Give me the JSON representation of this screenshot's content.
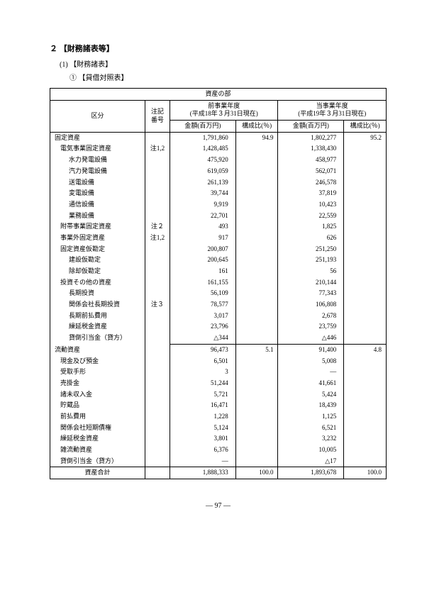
{
  "headings": {
    "h2": "２ 【財務諸表等】",
    "h3": "(1) 【財務諸表】",
    "h4": "① 【貸借対照表】"
  },
  "table": {
    "section_title": "資産の部",
    "col_label": "区分",
    "col_note": "注記番号",
    "period_prev": "前事業年度",
    "period_prev_sub": "(平成18年３月31日現在)",
    "period_curr": "当事業年度",
    "period_curr_sub": "(平成19年３月31日現在)",
    "col_amount": "金額(百万円)",
    "col_ratio": "構成比(％)",
    "total_label": "資産合計",
    "total_prev_amount": "1,888,333",
    "total_prev_ratio": "100.0",
    "total_curr_amount": "1,893,678",
    "total_curr_ratio": "100.0",
    "rows": [
      {
        "label": "固定資産",
        "note": "",
        "prev_amount": "1,791,860",
        "prev_ratio": "94.9",
        "curr_amount": "1,802,277",
        "curr_ratio": "95.2",
        "indent": 0,
        "section": true,
        "top": true
      },
      {
        "label": "電気事業固定資産",
        "note": "注1,2",
        "prev_amount": "1,428,485",
        "prev_ratio": "",
        "curr_amount": "1,338,430",
        "curr_ratio": "",
        "indent": 1
      },
      {
        "label": "水力発電設備",
        "note": "",
        "prev_amount": "475,920",
        "prev_ratio": "",
        "curr_amount": "458,977",
        "curr_ratio": "",
        "indent": 2
      },
      {
        "label": "汽力発電設備",
        "note": "",
        "prev_amount": "619,059",
        "prev_ratio": "",
        "curr_amount": "562,071",
        "curr_ratio": "",
        "indent": 2
      },
      {
        "label": "送電設備",
        "note": "",
        "prev_amount": "261,139",
        "prev_ratio": "",
        "curr_amount": "246,578",
        "curr_ratio": "",
        "indent": 2
      },
      {
        "label": "変電設備",
        "note": "",
        "prev_amount": "39,744",
        "prev_ratio": "",
        "curr_amount": "37,819",
        "curr_ratio": "",
        "indent": 2
      },
      {
        "label": "通信設備",
        "note": "",
        "prev_amount": "9,919",
        "prev_ratio": "",
        "curr_amount": "10,423",
        "curr_ratio": "",
        "indent": 2
      },
      {
        "label": "業務設備",
        "note": "",
        "prev_amount": "22,701",
        "prev_ratio": "",
        "curr_amount": "22,559",
        "curr_ratio": "",
        "indent": 2
      },
      {
        "label": "附帯事業固定資産",
        "note": "注２",
        "prev_amount": "493",
        "prev_ratio": "",
        "curr_amount": "1,825",
        "curr_ratio": "",
        "indent": 1
      },
      {
        "label": "事業外固定資産",
        "note": "注1,2",
        "prev_amount": "917",
        "prev_ratio": "",
        "curr_amount": "626",
        "curr_ratio": "",
        "indent": 1
      },
      {
        "label": "固定資産仮勘定",
        "note": "",
        "prev_amount": "200,807",
        "prev_ratio": "",
        "curr_amount": "251,250",
        "curr_ratio": "",
        "indent": 1
      },
      {
        "label": "建設仮勘定",
        "note": "",
        "prev_amount": "200,645",
        "prev_ratio": "",
        "curr_amount": "251,193",
        "curr_ratio": "",
        "indent": 2
      },
      {
        "label": "除却仮勘定",
        "note": "",
        "prev_amount": "161",
        "prev_ratio": "",
        "curr_amount": "56",
        "curr_ratio": "",
        "indent": 2
      },
      {
        "label": "投資その他の資産",
        "note": "",
        "prev_amount": "161,155",
        "prev_ratio": "",
        "curr_amount": "210,144",
        "curr_ratio": "",
        "indent": 1
      },
      {
        "label": "長期投資",
        "note": "",
        "prev_amount": "56,109",
        "prev_ratio": "",
        "curr_amount": "77,343",
        "curr_ratio": "",
        "indent": 2
      },
      {
        "label": "関係会社長期投資",
        "note": "注３",
        "prev_amount": "78,577",
        "prev_ratio": "",
        "curr_amount": "106,808",
        "curr_ratio": "",
        "indent": 2
      },
      {
        "label": "長期前払費用",
        "note": "",
        "prev_amount": "3,017",
        "prev_ratio": "",
        "curr_amount": "2,678",
        "curr_ratio": "",
        "indent": 2
      },
      {
        "label": "繰延税金資産",
        "note": "",
        "prev_amount": "23,796",
        "prev_ratio": "",
        "curr_amount": "23,759",
        "curr_ratio": "",
        "indent": 2
      },
      {
        "label": "貸倒引当金（貸方）",
        "note": "",
        "prev_amount": "△344",
        "prev_ratio": "",
        "curr_amount": "△446",
        "curr_ratio": "",
        "indent": 2
      },
      {
        "label": "流動資産",
        "note": "",
        "prev_amount": "96,473",
        "prev_ratio": "5.1",
        "curr_amount": "91,400",
        "curr_ratio": "4.8",
        "indent": 0,
        "section": true
      },
      {
        "label": "現金及び預金",
        "note": "",
        "prev_amount": "6,501",
        "prev_ratio": "",
        "curr_amount": "5,008",
        "curr_ratio": "",
        "indent": 1
      },
      {
        "label": "受取手形",
        "note": "",
        "prev_amount": "3",
        "prev_ratio": "",
        "curr_amount": "―",
        "curr_ratio": "",
        "indent": 1
      },
      {
        "label": "売掛金",
        "note": "",
        "prev_amount": "51,244",
        "prev_ratio": "",
        "curr_amount": "41,661",
        "curr_ratio": "",
        "indent": 1
      },
      {
        "label": "諸未収入金",
        "note": "",
        "prev_amount": "5,721",
        "prev_ratio": "",
        "curr_amount": "5,424",
        "curr_ratio": "",
        "indent": 1
      },
      {
        "label": "貯蔵品",
        "note": "",
        "prev_amount": "16,471",
        "prev_ratio": "",
        "curr_amount": "18,439",
        "curr_ratio": "",
        "indent": 1
      },
      {
        "label": "前払費用",
        "note": "",
        "prev_amount": "1,228",
        "prev_ratio": "",
        "curr_amount": "1,125",
        "curr_ratio": "",
        "indent": 1
      },
      {
        "label": "関係会社短期債権",
        "note": "",
        "prev_amount": "5,124",
        "prev_ratio": "",
        "curr_amount": "6,521",
        "curr_ratio": "",
        "indent": 1
      },
      {
        "label": "繰延税金資産",
        "note": "",
        "prev_amount": "3,801",
        "prev_ratio": "",
        "curr_amount": "3,232",
        "curr_ratio": "",
        "indent": 1
      },
      {
        "label": "雑流動資産",
        "note": "",
        "prev_amount": "6,376",
        "prev_ratio": "",
        "curr_amount": "10,005",
        "curr_ratio": "",
        "indent": 1
      },
      {
        "label": "貸倒引当金（貸方）",
        "note": "",
        "prev_amount": "―",
        "prev_ratio": "",
        "curr_amount": "△17",
        "curr_ratio": "",
        "indent": 1
      }
    ]
  },
  "page_number": "― 97 ―"
}
